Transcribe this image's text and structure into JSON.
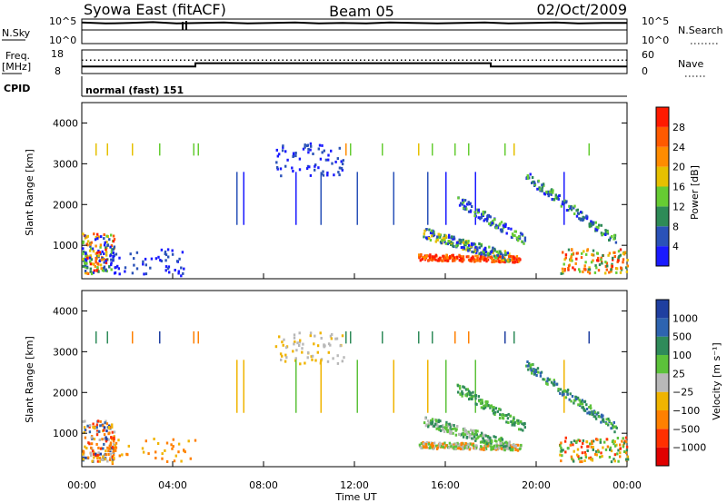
{
  "header": {
    "station": "Syowa East (fitACF)",
    "beam": "Beam 05",
    "date": "02/Oct/2009"
  },
  "chart_data": [
    {
      "type": "line",
      "panel": "noise",
      "left_label": "N.Sky",
      "right_label": "N.Search",
      "left_ticks": [
        "10^5",
        "10^0"
      ],
      "right_ticks": [
        "10^5",
        "10^0"
      ],
      "x_range": [
        "00:00",
        "24:00"
      ],
      "series": [
        {
          "values": [
            4.2,
            4.0,
            4.1,
            4.3,
            4.0,
            4.1,
            4.2,
            4.0,
            4.1,
            4.2,
            4.0,
            4.1,
            4.0,
            4.2,
            4.1,
            4.0,
            4.1,
            4.2,
            4.0,
            4.1,
            4.2,
            4.0,
            4.1,
            4.1
          ]
        }
      ]
    },
    {
      "type": "line",
      "panel": "frequency",
      "left_label": "Freq.",
      "left_unit": "[MHz]",
      "left_ticks": [
        "18",
        "8"
      ],
      "right_label": "Nave",
      "right_ticks": [
        "60",
        "0"
      ],
      "x": [
        0,
        5,
        5,
        18,
        18,
        24
      ],
      "freq_mhz": [
        10.3,
        10.3,
        12.0,
        12.0,
        10.3,
        10.3
      ],
      "nave": [
        35,
        35,
        35,
        35,
        35,
        35
      ]
    },
    {
      "type": "heatmap",
      "panel": "cpid",
      "label": "CPID",
      "program": "normal (fast) 151"
    },
    {
      "type": "heatmap",
      "panel": "power",
      "ylabel": "Slant Range [km]",
      "yticks": [
        1000,
        2000,
        3000,
        4000
      ],
      "ylim": [
        180,
        4500
      ],
      "xlim_hours": [
        0,
        24
      ],
      "colorbar": {
        "label": "Power [dB]",
        "ticks": [
          4,
          8,
          12,
          16,
          20,
          24,
          28
        ],
        "colors": [
          "#1a1aff",
          "#2a52b8",
          "#2e8b57",
          "#66cc33",
          "#e6c000",
          "#ff8c00",
          "#ff5a00",
          "#ff1a00"
        ]
      }
    },
    {
      "type": "heatmap",
      "panel": "velocity",
      "ylabel": "Slant Range [km]",
      "yticks": [
        1000,
        2000,
        3000,
        4000
      ],
      "ylim": [
        180,
        4500
      ],
      "xlabel": "Time UT",
      "xticks": [
        "00:00",
        "04:00",
        "08:00",
        "12:00",
        "16:00",
        "20:00",
        "00:00"
      ],
      "colorbar": {
        "label": "Velocity [m s⁻¹]",
        "ticks": [
          "1000",
          "500",
          "100",
          "25",
          "−25",
          "−100",
          "−500",
          "−1000"
        ],
        "colors": [
          "#1f3fa0",
          "#2e64b0",
          "#2f8b5a",
          "#5cc23a",
          "#b8b8b8",
          "#f0b400",
          "#ff8000",
          "#ff3000",
          "#e00000"
        ]
      }
    }
  ]
}
